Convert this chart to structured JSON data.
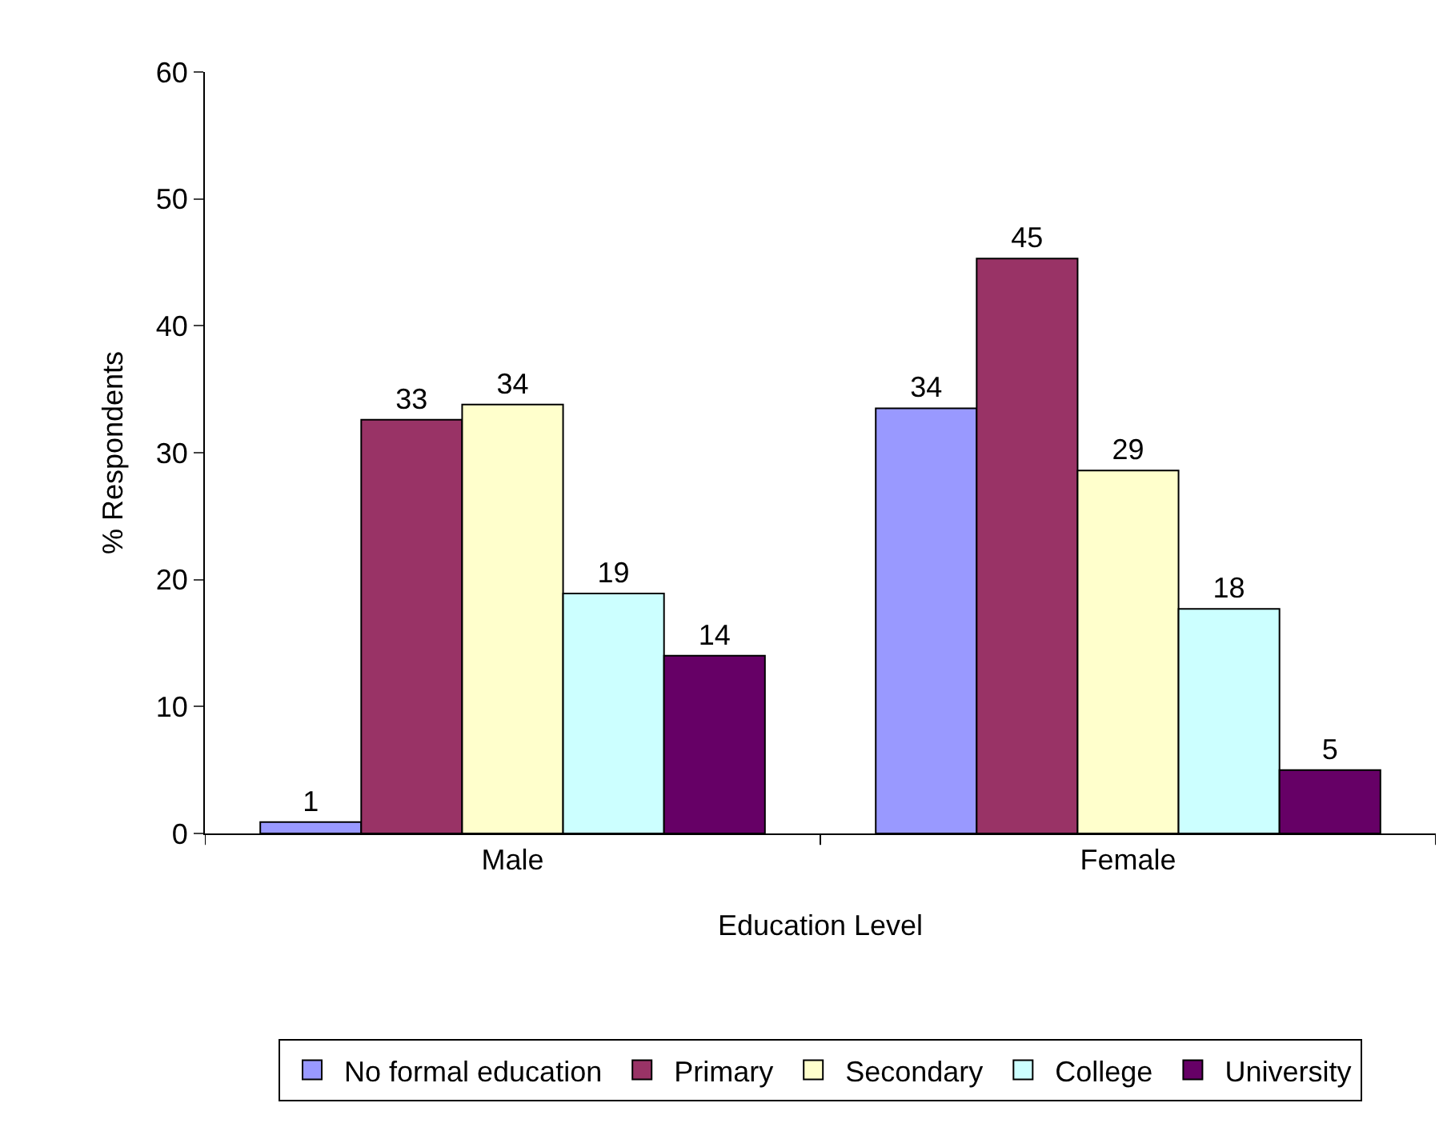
{
  "chart_data": {
    "type": "bar",
    "xlabel": "Education Level",
    "ylabel": "% Respondents",
    "categories": [
      "Male",
      "Female"
    ],
    "series": [
      {
        "name": "No formal education",
        "color": "#9999ff",
        "values": [
          0.9,
          33.5
        ],
        "value_labels": [
          "1",
          "34"
        ]
      },
      {
        "name": "Primary",
        "color": "#993366",
        "values": [
          32.6,
          45.3
        ],
        "value_labels": [
          "33",
          "45"
        ]
      },
      {
        "name": "Secondary",
        "color": "#ffffcc",
        "values": [
          33.8,
          28.6
        ],
        "value_labels": [
          "34",
          "29"
        ]
      },
      {
        "name": "College",
        "color": "#ccffff",
        "values": [
          18.9,
          17.7
        ],
        "value_labels": [
          "19",
          "18"
        ]
      },
      {
        "name": "University",
        "color": "#660066",
        "values": [
          14.0,
          5.0
        ],
        "value_labels": [
          "14",
          "5"
        ]
      }
    ],
    "ylim": [
      0,
      60
    ],
    "yticks": [
      0,
      10,
      20,
      30,
      40,
      50,
      60
    ],
    "legend": "bottom"
  }
}
